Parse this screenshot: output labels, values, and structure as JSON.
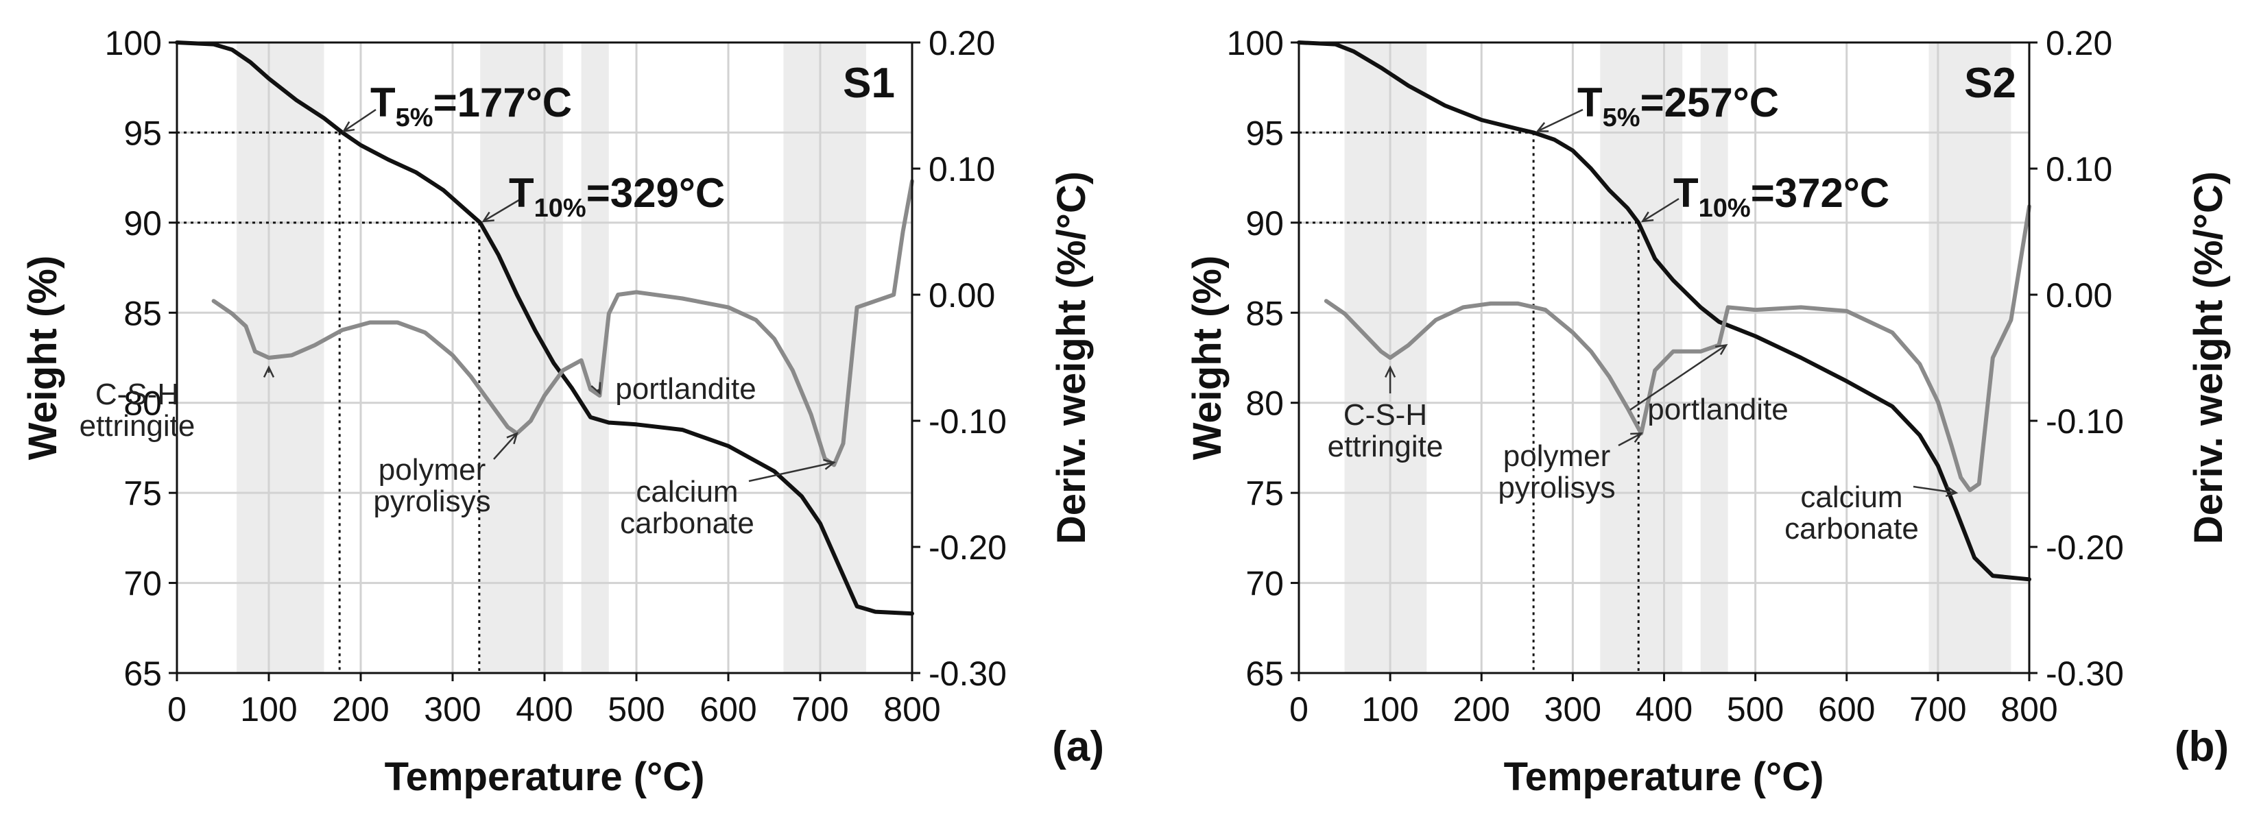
{
  "chart_data": [
    {
      "type": "line",
      "panel_tag": "(a)",
      "sample": "S1",
      "xlabel": "Temperature (°C)",
      "ylabel": "Weight (%)",
      "y2label": "Deriv. weight (%/°C)",
      "xlim": [
        0,
        800
      ],
      "ylim": [
        65,
        100
      ],
      "y2lim": [
        -0.3,
        0.2
      ],
      "x_ticks": [
        "0",
        "100",
        "200",
        "300",
        "400",
        "500",
        "600",
        "700",
        "800"
      ],
      "y_ticks": [
        "65",
        "70",
        "75",
        "80",
        "85",
        "90",
        "95",
        "100"
      ],
      "y2_ticks": [
        "-0.30",
        "-0.20",
        "-0.10",
        "0.00",
        "0.10",
        "0.20"
      ],
      "grid": true,
      "shaded_regions": [
        [
          65,
          160
        ],
        [
          330,
          420
        ],
        [
          440,
          470
        ],
        [
          660,
          750
        ]
      ],
      "series": [
        {
          "name": "Weight",
          "axis": "left",
          "color": "#111111",
          "x": [
            0,
            40,
            60,
            80,
            100,
            130,
            160,
            180,
            200,
            230,
            260,
            290,
            310,
            330,
            350,
            370,
            390,
            410,
            430,
            450,
            470,
            500,
            550,
            600,
            650,
            680,
            700,
            720,
            740,
            760,
            800
          ],
          "y": [
            100,
            99.9,
            99.6,
            98.9,
            98.0,
            96.8,
            95.8,
            95.0,
            94.3,
            93.5,
            92.8,
            91.8,
            90.9,
            90.0,
            88.2,
            86.0,
            84.0,
            82.2,
            80.8,
            79.2,
            78.9,
            78.8,
            78.5,
            77.6,
            76.2,
            74.8,
            73.3,
            71.0,
            68.7,
            68.4,
            68.3
          ]
        },
        {
          "name": "Deriv. weight",
          "axis": "right",
          "color": "#8a8a8a",
          "x": [
            40,
            60,
            75,
            85,
            100,
            125,
            150,
            180,
            210,
            240,
            270,
            300,
            320,
            340,
            360,
            370,
            385,
            400,
            420,
            440,
            450,
            460,
            470,
            480,
            500,
            550,
            600,
            630,
            650,
            670,
            690,
            705,
            715,
            725,
            740,
            760,
            780,
            790,
            800
          ],
          "y": [
            -0.005,
            -0.015,
            -0.025,
            -0.045,
            -0.05,
            -0.048,
            -0.04,
            -0.028,
            -0.022,
            -0.022,
            -0.03,
            -0.048,
            -0.065,
            -0.085,
            -0.105,
            -0.11,
            -0.1,
            -0.08,
            -0.06,
            -0.052,
            -0.075,
            -0.08,
            -0.015,
            0.0,
            0.002,
            -0.003,
            -0.01,
            -0.02,
            -0.035,
            -0.06,
            -0.095,
            -0.13,
            -0.135,
            -0.118,
            -0.01,
            -0.005,
            0.0,
            0.05,
            0.09
          ]
        }
      ],
      "threshold_lines": [
        {
          "label_main": "T",
          "label_sub": "5%",
          "label_value": "=177°C",
          "temperature": 177,
          "weight": 95
        },
        {
          "label_main": "T",
          "label_sub": "10%",
          "label_value": "=329°C",
          "temperature": 329,
          "weight": 90
        }
      ],
      "annotations": [
        {
          "lines": [
            "C-S-H",
            "ettringite"
          ],
          "target": [
            100,
            -0.05
          ],
          "anchor": "left"
        },
        {
          "lines": [
            "polymer",
            "pyrolisys"
          ],
          "target": [
            370,
            -0.11
          ],
          "anchor": "left"
        },
        {
          "lines": [
            "portlandite"
          ],
          "target": [
            460,
            -0.078
          ],
          "anchor": "right"
        },
        {
          "lines": [
            "calcium",
            "carbonate"
          ],
          "target": [
            715,
            -0.133
          ],
          "anchor": "left"
        }
      ]
    },
    {
      "type": "line",
      "panel_tag": "(b)",
      "sample": "S2",
      "xlabel": "Temperature (°C)",
      "ylabel": "Weight (%)",
      "y2label": "Deriv. weight (%/°C)",
      "xlim": [
        0,
        800
      ],
      "ylim": [
        65,
        100
      ],
      "y2lim": [
        -0.3,
        0.2
      ],
      "x_ticks": [
        "0",
        "100",
        "200",
        "300",
        "400",
        "500",
        "600",
        "700",
        "800"
      ],
      "y_ticks": [
        "65",
        "70",
        "75",
        "80",
        "85",
        "90",
        "95",
        "100"
      ],
      "y2_ticks": [
        "-0.30",
        "-0.20",
        "-0.10",
        "0.00",
        "0.10",
        "0.20"
      ],
      "grid": true,
      "shaded_regions": [
        [
          50,
          140
        ],
        [
          330,
          420
        ],
        [
          440,
          470
        ],
        [
          690,
          780
        ]
      ],
      "series": [
        {
          "name": "Weight",
          "axis": "left",
          "color": "#111111",
          "x": [
            0,
            40,
            60,
            90,
            120,
            160,
            200,
            240,
            257,
            280,
            300,
            320,
            340,
            360,
            372,
            390,
            410,
            440,
            460,
            500,
            550,
            600,
            650,
            680,
            700,
            720,
            740,
            760,
            800
          ],
          "y": [
            100,
            99.9,
            99.5,
            98.6,
            97.6,
            96.5,
            95.7,
            95.2,
            95.0,
            94.6,
            94.0,
            93.0,
            91.8,
            90.8,
            90.0,
            88.0,
            86.8,
            85.3,
            84.5,
            83.7,
            82.5,
            81.2,
            79.8,
            78.2,
            76.5,
            74.0,
            71.4,
            70.4,
            70.2
          ]
        },
        {
          "name": "Deriv. weight",
          "axis": "right",
          "color": "#8a8a8a",
          "x": [
            30,
            50,
            70,
            90,
            100,
            120,
            150,
            180,
            210,
            240,
            270,
            300,
            320,
            340,
            360,
            375,
            390,
            410,
            440,
            460,
            470,
            500,
            550,
            600,
            650,
            680,
            700,
            715,
            725,
            735,
            745,
            760,
            780,
            800
          ],
          "y": [
            -0.005,
            -0.015,
            -0.03,
            -0.045,
            -0.05,
            -0.04,
            -0.02,
            -0.01,
            -0.007,
            -0.007,
            -0.012,
            -0.03,
            -0.045,
            -0.065,
            -0.09,
            -0.11,
            -0.06,
            -0.045,
            -0.045,
            -0.04,
            -0.01,
            -0.012,
            -0.01,
            -0.013,
            -0.03,
            -0.055,
            -0.085,
            -0.12,
            -0.145,
            -0.155,
            -0.15,
            -0.05,
            -0.02,
            0.07
          ]
        }
      ],
      "threshold_lines": [
        {
          "label_main": "T",
          "label_sub": "5%",
          "label_value": "=257°C",
          "temperature": 257,
          "weight": 95
        },
        {
          "label_main": "T",
          "label_sub": "10%",
          "label_value": "=372°C",
          "temperature": 372,
          "weight": 90
        }
      ],
      "annotations": [
        {
          "lines": [
            "C-S-H",
            "ettringite"
          ],
          "target": [
            100,
            -0.05
          ],
          "anchor": "left"
        },
        {
          "lines": [
            "polymer",
            "pyrolisys"
          ],
          "target": [
            375,
            -0.11
          ],
          "anchor": "left"
        },
        {
          "lines": [
            "portlandite"
          ],
          "target": [
            468,
            -0.04
          ],
          "anchor": "right"
        },
        {
          "lines": [
            "calcium",
            "carbonate"
          ],
          "target": [
            720,
            75.0
          ],
          "anchor": "left",
          "target_axis": "left"
        }
      ]
    }
  ]
}
